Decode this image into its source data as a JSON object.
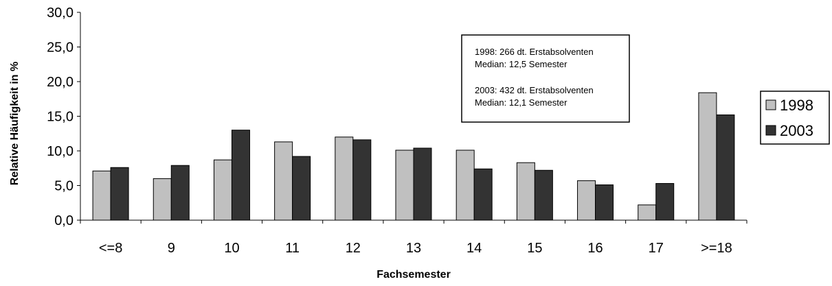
{
  "chart_data": {
    "type": "bar",
    "title": "",
    "xlabel": "Fachsemester",
    "ylabel": "Relative Häufigkeit in %",
    "ylim": [
      0,
      30
    ],
    "y_ticks": [
      "0,0",
      "5,0",
      "10,0",
      "15,0",
      "20,0",
      "25,0",
      "30,0"
    ],
    "categories": [
      "<=8",
      "9",
      "10",
      "11",
      "12",
      "13",
      "14",
      "15",
      "16",
      "17",
      ">=18"
    ],
    "series": [
      {
        "name": "1998",
        "color": "#c0c0c0",
        "values": [
          7.1,
          6.0,
          8.7,
          11.3,
          12.0,
          10.1,
          10.1,
          8.3,
          5.7,
          2.2,
          18.4
        ]
      },
      {
        "name": "2003",
        "color": "#333333",
        "values": [
          7.6,
          7.9,
          13.0,
          9.2,
          11.6,
          10.4,
          7.4,
          7.2,
          5.1,
          5.3,
          15.2
        ]
      }
    ],
    "grid": false,
    "legend_position": "right",
    "annotation": {
      "lines": [
        "1998: 266 dt. Erstabsolventen",
        "Median: 12,5 Semester",
        "",
        "2003: 432 dt. Erstabsolventen",
        "Median: 12,1 Semester"
      ]
    }
  }
}
